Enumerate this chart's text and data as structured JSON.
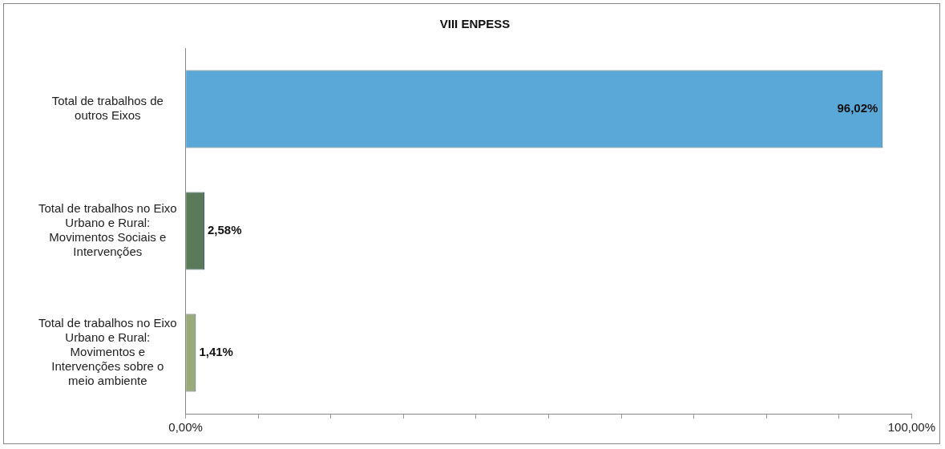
{
  "chart_data": {
    "type": "bar",
    "orientation": "horizontal",
    "title": "VIII ENPESS",
    "categories": [
      "Total de trabalhos de outros Eixos",
      "Total de trabalhos no Eixo Urbano e Rural: Movimentos Sociais e Intervenções",
      "Total de trabalhos no Eixo Urbano e Rural: Movimentos e Intervenções sobre o meio ambiente"
    ],
    "values": [
      96.02,
      2.58,
      1.41
    ],
    "colors": [
      "#5aa8d8",
      "#5a7a5a",
      "#9aab7a"
    ],
    "value_labels": [
      "96,02%",
      "2,58%",
      "1,41%"
    ],
    "xlim": [
      0,
      100
    ],
    "xticks": [
      {
        "value": 0,
        "label": "0,00%"
      },
      {
        "value": 10,
        "label": null
      },
      {
        "value": 20,
        "label": null
      },
      {
        "value": 30,
        "label": null
      },
      {
        "value": 40,
        "label": null
      },
      {
        "value": 50,
        "label": null
      },
      {
        "value": 60,
        "label": null
      },
      {
        "value": 70,
        "label": null
      },
      {
        "value": 80,
        "label": null
      },
      {
        "value": 90,
        "label": null
      },
      {
        "value": 100,
        "label": "100,00%"
      }
    ],
    "grid": false,
    "legend": false
  }
}
